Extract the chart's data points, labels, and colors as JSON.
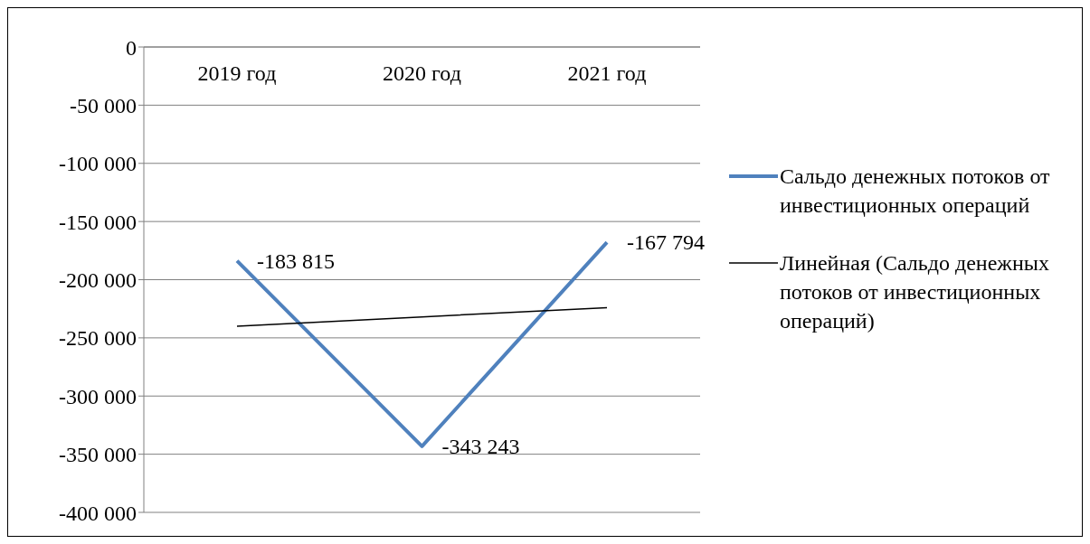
{
  "chart_data": {
    "type": "line",
    "categories": [
      "2019 год",
      "2020 год",
      "2021 год"
    ],
    "series": [
      {
        "name": "Сальдо денежных потоков от инвестиционных операций",
        "color": "#4f81bd",
        "values": [
          -183815,
          -343243,
          -167794
        ],
        "value_labels": [
          "-183 815",
          "-343 243",
          "-167 794"
        ]
      },
      {
        "name": "Линейная (Сальдо денежных потоков от инвестиционных операций)",
        "color": "#000000",
        "values": [
          -240000,
          -232000,
          -224000
        ]
      }
    ],
    "ylim": [
      -400000,
      0
    ],
    "yticks": [
      {
        "value": 0,
        "label": "0"
      },
      {
        "value": -50000,
        "label": "-50 000"
      },
      {
        "value": -100000,
        "label": "-100 000"
      },
      {
        "value": -150000,
        "label": "-150 000"
      },
      {
        "value": -200000,
        "label": "-200 000"
      },
      {
        "value": -250000,
        "label": "-250 000"
      },
      {
        "value": -300000,
        "label": "-300 000"
      },
      {
        "value": -350000,
        "label": "-350 000"
      },
      {
        "value": -400000,
        "label": "-400 000"
      }
    ],
    "grid": "y",
    "legend": "right",
    "marker": "none"
  }
}
